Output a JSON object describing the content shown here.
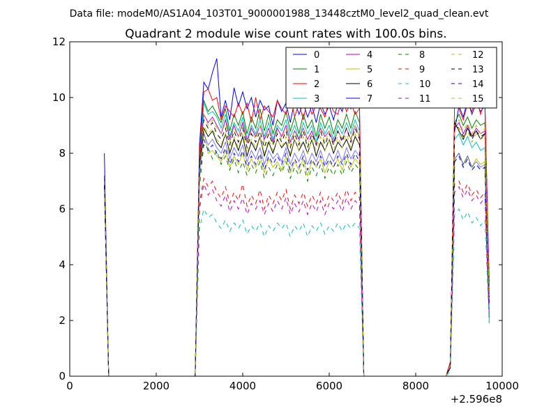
{
  "header": {
    "data_file": "Data file: modeM0/AS1A04_103T01_9000001988_13448cztM0_level2_quad_clean.evt"
  },
  "chart_data": {
    "type": "line",
    "title": "Quadrant 2 module wise count rates with 100.0s bins.",
    "xlabel": "",
    "ylabel": "",
    "x_offset_label": "+2.596e8",
    "xlim": [
      0,
      10000
    ],
    "ylim": [
      0,
      12
    ],
    "xticks": [
      0,
      2000,
      4000,
      6000,
      8000,
      10000
    ],
    "yticks": [
      0,
      2,
      4,
      6,
      8,
      10,
      12
    ],
    "grid": false,
    "legend_position": "top-right",
    "legend_columns": 4,
    "x": [
      800,
      900,
      1000,
      2900,
      3000,
      3100,
      3200,
      3300,
      3400,
      3500,
      3600,
      3700,
      3800,
      3900,
      4000,
      4100,
      4200,
      4300,
      4400,
      4500,
      4600,
      4700,
      4800,
      4900,
      5000,
      5100,
      5200,
      5300,
      5400,
      5500,
      5600,
      5700,
      5800,
      5900,
      6000,
      6100,
      6200,
      6300,
      6400,
      6500,
      6600,
      6700,
      6800,
      6900,
      8700,
      8800,
      8900,
      9000,
      9100,
      9200,
      9300,
      9400,
      9500,
      9600,
      9700
    ],
    "series": [
      {
        "name": "0",
        "color": "#0000ff",
        "dash": "solid",
        "values": [
          8.0,
          0,
          0,
          0,
          8.3,
          10.55,
          10.3,
          10.9,
          11.4,
          9.3,
          9.9,
          9.2,
          10.35,
          9.7,
          10.2,
          9.6,
          10.0,
          9.3,
          9.9,
          9.55,
          9.7,
          9.0,
          9.9,
          9.5,
          9.8,
          9.1,
          9.9,
          9.4,
          9.8,
          9.3,
          9.7,
          9.1,
          9.8,
          9.4,
          9.7,
          9.2,
          9.8,
          9.5,
          10.1,
          9.6,
          10.3,
          9.7,
          0,
          0,
          0,
          0.5,
          8.8,
          9.7,
          9.3,
          9.9,
          9.4,
          9.8,
          9.5,
          9.7,
          3.4
        ]
      },
      {
        "name": "1",
        "color": "#008000",
        "dash": "solid",
        "values": [
          7.2,
          0,
          0,
          0,
          7.9,
          9.9,
          9.5,
          9.7,
          9.4,
          9.1,
          9.6,
          8.8,
          9.4,
          9.0,
          9.5,
          8.7,
          9.3,
          8.9,
          9.6,
          8.8,
          9.4,
          8.7,
          9.2,
          9.0,
          9.5,
          8.8,
          9.3,
          8.7,
          9.4,
          8.9,
          9.2,
          8.6,
          9.4,
          8.9,
          9.3,
          8.7,
          9.2,
          8.9,
          9.4,
          8.9,
          9.5,
          9.1,
          0,
          0,
          0,
          0.4,
          9.1,
          9.4,
          9.0,
          9.3,
          8.9,
          9.2,
          9.0,
          9.1,
          3.2
        ]
      },
      {
        "name": "2",
        "color": "#ff0000",
        "dash": "solid",
        "values": [
          7.1,
          0,
          0,
          0,
          8.0,
          10.2,
          10.3,
          9.9,
          10.0,
          9.2,
          9.7,
          9.5,
          9.3,
          9.8,
          9.4,
          9.8,
          9.1,
          10.0,
          9.2,
          9.7,
          9.5,
          9.3,
          9.9,
          9.6,
          9.4,
          10.1,
          9.3,
          9.8,
          9.2,
          10.0,
          9.4,
          9.7,
          9.6,
          9.3,
          9.9,
          9.5,
          9.4,
          10.0,
          9.5,
          9.8,
          9.4,
          9.6,
          0,
          0,
          0,
          0.5,
          9.9,
          9.6,
          9.2,
          9.8,
          9.5,
          10.0,
          9.4,
          9.9,
          3.0
        ]
      },
      {
        "name": "3",
        "color": "#00bfbf",
        "dash": "solid",
        "values": [
          7.0,
          0,
          0,
          0,
          7.5,
          9.8,
          9.4,
          9.5,
          9.3,
          8.9,
          9.4,
          8.6,
          9.1,
          8.8,
          9.3,
          8.5,
          9.0,
          8.7,
          9.2,
          8.6,
          9.1,
          8.5,
          9.0,
          8.8,
          9.2,
          8.6,
          9.0,
          8.5,
          9.1,
          8.7,
          9.0,
          8.4,
          9.1,
          8.7,
          9.0,
          8.5,
          9.0,
          8.7,
          9.1,
          8.7,
          9.2,
          8.8,
          0,
          0,
          0,
          0.4,
          8.5,
          8.7,
          8.3,
          8.6,
          8.2,
          8.4,
          8.1,
          8.2,
          1.9
        ]
      },
      {
        "name": "4",
        "color": "#bf00bf",
        "dash": "solid",
        "values": [
          7.0,
          0,
          0,
          0,
          7.6,
          9.4,
          9.1,
          9.3,
          9.0,
          8.7,
          9.2,
          8.5,
          9.0,
          8.6,
          9.1,
          8.4,
          8.9,
          8.6,
          9.0,
          8.5,
          8.9,
          8.4,
          8.9,
          8.6,
          9.0,
          8.4,
          8.8,
          8.5,
          8.9,
          8.5,
          8.8,
          8.3,
          8.9,
          8.6,
          8.8,
          8.4,
          8.8,
          8.5,
          8.9,
          8.5,
          9.0,
          8.6,
          0,
          0,
          0,
          0.4,
          8.9,
          9.1,
          8.7,
          9.0,
          8.6,
          8.9,
          8.7,
          8.8,
          3.0
        ]
      },
      {
        "name": "5",
        "color": "#bfbf00",
        "dash": "solid",
        "values": [
          7.0,
          0,
          0,
          0,
          7.0,
          8.8,
          8.0,
          8.1,
          7.9,
          7.7,
          8.1,
          7.5,
          7.9,
          7.6,
          8.0,
          7.4,
          7.8,
          7.5,
          7.9,
          7.3,
          7.8,
          7.5,
          7.7,
          7.4,
          7.9,
          7.3,
          7.7,
          7.4,
          7.8,
          7.2,
          7.7,
          7.5,
          7.8,
          7.3,
          7.7,
          7.5,
          7.8,
          7.4,
          7.9,
          7.5,
          7.8,
          7.6,
          0,
          0,
          0,
          0.3,
          7.8,
          8.0,
          7.6,
          7.9,
          7.5,
          7.8,
          7.6,
          7.7,
          2.5
        ]
      },
      {
        "name": "6",
        "color": "#000000",
        "dash": "solid",
        "values": [
          7.0,
          0,
          0,
          0,
          7.6,
          8.9,
          8.6,
          8.8,
          8.4,
          8.2,
          8.7,
          8.0,
          8.5,
          8.1,
          8.6,
          7.9,
          8.4,
          8.1,
          8.6,
          7.9,
          8.4,
          8.0,
          8.5,
          8.2,
          8.4,
          7.9,
          8.5,
          8.1,
          8.4,
          8.0,
          8.5,
          7.9,
          8.4,
          8.1,
          8.5,
          8.0,
          8.4,
          8.2,
          8.5,
          8.1,
          8.6,
          8.3,
          0,
          0,
          0,
          0.4,
          9.1,
          8.8,
          8.5,
          8.9,
          8.6,
          8.8,
          8.5,
          8.7,
          2.8
        ]
      },
      {
        "name": "7",
        "color": "#0000ff",
        "dash": "solid",
        "values": [
          7.0,
          0,
          0,
          0,
          7.4,
          8.7,
          8.3,
          8.5,
          8.2,
          8.0,
          8.4,
          7.8,
          8.2,
          7.9,
          8.3,
          7.7,
          8.1,
          7.8,
          8.2,
          7.6,
          8.1,
          7.8,
          8.0,
          7.7,
          8.2,
          7.6,
          8.0,
          7.7,
          8.1,
          7.6,
          8.0,
          7.7,
          8.1,
          7.6,
          8.0,
          7.7,
          8.1,
          7.7,
          8.2,
          7.8,
          8.1,
          7.9,
          0,
          0,
          0,
          0.4,
          7.8,
          8.0,
          7.6,
          7.9,
          7.5,
          7.7,
          7.5,
          7.6,
          2.6
        ]
      },
      {
        "name": "8",
        "color": "#008000",
        "dash": "dashed",
        "values": [
          7.0,
          0,
          0,
          0,
          6.8,
          8.3,
          8.2,
          7.8,
          8.1,
          7.6,
          7.9,
          7.4,
          7.8,
          7.3,
          7.7,
          7.2,
          7.6,
          7.3,
          7.7,
          7.1,
          7.5,
          7.2,
          7.6,
          7.3,
          7.7,
          7.1,
          7.5,
          7.2,
          7.6,
          7.0,
          7.5,
          7.2,
          7.6,
          7.1,
          7.5,
          7.2,
          7.6,
          7.2,
          7.7,
          7.3,
          7.6,
          7.4,
          0,
          0,
          0,
          0.3,
          7.7,
          7.9,
          7.5,
          7.8,
          7.4,
          7.6,
          7.4,
          7.5,
          2.4
        ]
      },
      {
        "name": "9",
        "color": "#ff0000",
        "dash": "dashed",
        "values": [
          7.0,
          0,
          0,
          0,
          6.2,
          7.1,
          6.8,
          7.0,
          6.6,
          6.4,
          6.8,
          6.2,
          6.6,
          6.3,
          6.9,
          6.1,
          6.5,
          6.2,
          6.7,
          6.0,
          6.5,
          6.2,
          6.6,
          6.3,
          6.7,
          6.0,
          6.5,
          6.2,
          6.6,
          6.1,
          6.5,
          6.2,
          6.6,
          6.1,
          6.5,
          6.3,
          6.6,
          6.2,
          6.7,
          6.3,
          6.6,
          6.4,
          0,
          0,
          0,
          0.3,
          6.9,
          7.0,
          6.6,
          6.9,
          6.5,
          6.7,
          6.4,
          6.6,
          2.2
        ]
      },
      {
        "name": "10",
        "color": "#00bfbf",
        "dash": "dashed",
        "values": [
          7.0,
          0,
          0,
          0,
          5.3,
          6.0,
          5.7,
          5.8,
          5.5,
          5.3,
          5.6,
          5.2,
          5.5,
          5.3,
          5.6,
          5.1,
          5.4,
          5.2,
          5.5,
          5.0,
          5.4,
          5.2,
          5.5,
          5.3,
          5.5,
          5.0,
          5.4,
          5.2,
          5.5,
          5.0,
          5.4,
          5.2,
          5.5,
          5.1,
          5.4,
          5.2,
          5.5,
          5.2,
          5.5,
          5.3,
          5.5,
          5.3,
          0,
          0,
          0,
          0.2,
          5.8,
          6.0,
          5.6,
          5.9,
          5.5,
          5.7,
          5.4,
          5.6,
          1.9
        ]
      },
      {
        "name": "11",
        "color": "#bf00bf",
        "dash": "dashed",
        "values": [
          7.0,
          0,
          0,
          0,
          6.0,
          6.9,
          6.5,
          6.7,
          6.3,
          6.1,
          6.5,
          5.9,
          6.3,
          6.0,
          6.4,
          5.8,
          6.2,
          6.0,
          6.3,
          5.8,
          6.2,
          5.9,
          6.3,
          6.0,
          6.4,
          5.8,
          6.2,
          5.9,
          6.3,
          5.8,
          6.2,
          5.9,
          6.3,
          5.8,
          6.2,
          6.0,
          6.3,
          5.9,
          6.4,
          6.0,
          6.3,
          6.1,
          0,
          0,
          0,
          0.3,
          6.6,
          6.8,
          6.4,
          6.7,
          6.3,
          6.5,
          6.2,
          6.4,
          2.1
        ]
      },
      {
        "name": "12",
        "color": "#bfbf00",
        "dash": "dashed",
        "values": [
          7.0,
          0,
          0,
          0,
          7.5,
          9.4,
          9.0,
          9.2,
          8.9,
          8.7,
          9.1,
          8.4,
          8.9,
          8.6,
          9.0,
          8.3,
          8.8,
          8.5,
          9.0,
          8.4,
          8.8,
          8.3,
          8.8,
          8.5,
          8.9,
          8.3,
          8.8,
          8.4,
          8.9,
          8.3,
          8.7,
          8.3,
          8.9,
          8.4,
          8.8,
          8.3,
          8.8,
          8.5,
          8.9,
          8.5,
          9.0,
          8.6,
          0,
          0,
          0,
          0.4,
          9.0,
          9.2,
          8.8,
          9.1,
          8.7,
          9.0,
          8.7,
          8.9,
          2.9
        ]
      },
      {
        "name": "13",
        "color": "#000000",
        "dash": "dashed",
        "values": [
          7.0,
          0,
          0,
          0,
          7.6,
          9.2,
          8.9,
          9.1,
          8.7,
          8.5,
          8.9,
          8.3,
          8.8,
          8.4,
          8.9,
          8.2,
          8.7,
          8.4,
          8.8,
          8.2,
          8.7,
          8.3,
          8.7,
          8.4,
          8.8,
          8.2,
          8.7,
          8.3,
          8.8,
          8.2,
          8.7,
          8.3,
          8.8,
          8.3,
          8.7,
          8.3,
          8.8,
          8.4,
          8.9,
          8.4,
          8.9,
          8.5,
          0,
          0,
          0,
          0.4,
          9.0,
          8.9,
          8.6,
          8.9,
          8.5,
          8.8,
          8.6,
          8.7,
          2.8
        ]
      },
      {
        "name": "14",
        "color": "#0000ff",
        "dash": "dashed",
        "values": [
          7.0,
          0,
          0,
          0,
          7.2,
          8.5,
          8.1,
          8.3,
          8.0,
          7.8,
          8.2,
          7.6,
          8.0,
          7.7,
          8.1,
          7.5,
          7.9,
          7.6,
          8.0,
          7.4,
          7.9,
          7.6,
          7.9,
          7.6,
          8.0,
          7.4,
          7.8,
          7.5,
          7.9,
          7.4,
          7.8,
          7.5,
          7.9,
          7.5,
          7.8,
          7.5,
          7.9,
          7.6,
          8.0,
          7.6,
          8.0,
          7.7,
          0,
          0,
          0,
          0.3,
          7.7,
          7.9,
          7.5,
          7.8,
          7.4,
          7.6,
          7.4,
          7.5,
          2.5
        ]
      },
      {
        "name": "15",
        "color": "#bfbf00",
        "dash": "dashed",
        "values": [
          7.0,
          0,
          0,
          0,
          7.4,
          9.0,
          8.7,
          8.9,
          8.5,
          8.3,
          8.7,
          8.1,
          8.6,
          8.2,
          8.7,
          8.0,
          8.5,
          8.2,
          8.6,
          8.0,
          8.5,
          8.1,
          8.5,
          8.2,
          8.6,
          8.0,
          8.5,
          8.1,
          8.6,
          8.0,
          8.5,
          8.1,
          8.6,
          8.1,
          8.5,
          8.1,
          8.6,
          8.2,
          8.7,
          8.2,
          8.7,
          8.3,
          0,
          0,
          0,
          0.4,
          8.8,
          8.9,
          8.5,
          8.8,
          8.4,
          8.7,
          8.5,
          8.6,
          2.8
        ]
      }
    ]
  }
}
